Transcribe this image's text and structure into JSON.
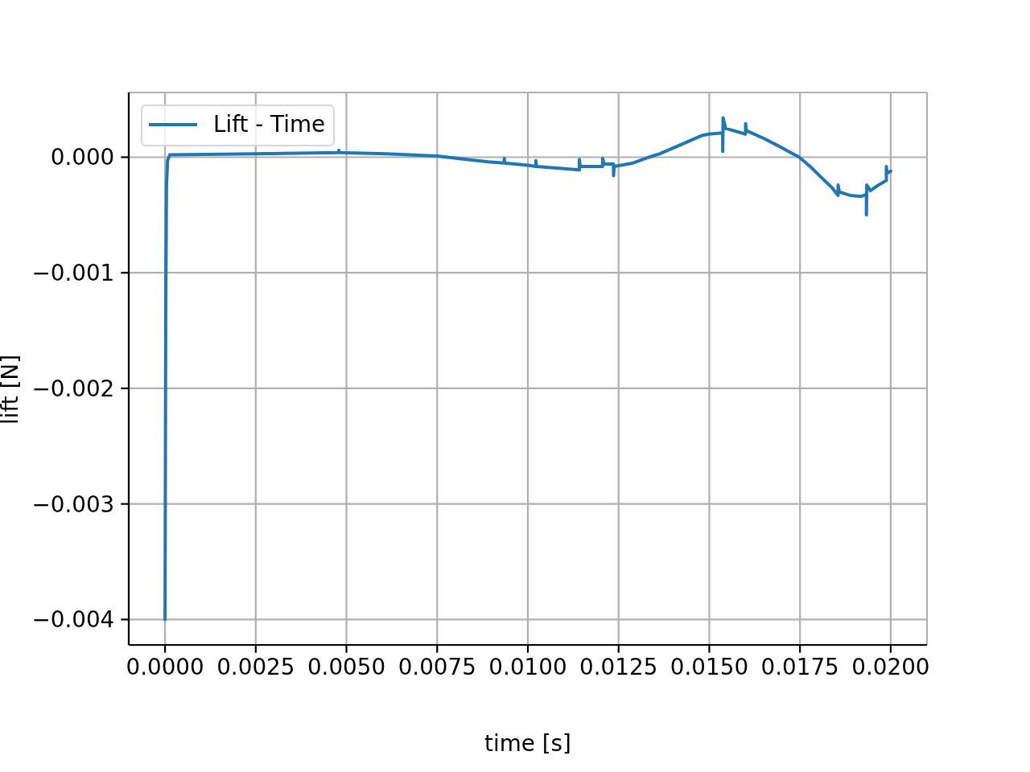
{
  "chart_data": {
    "type": "line",
    "xlabel": "time [s]",
    "ylabel": "lift [N]",
    "x": [
      0,
      2e-05,
      4e-05,
      7e-05,
      0.00013,
      0.0025,
      0.00479,
      0.00479,
      0.0048,
      0.0061,
      0.0075,
      0.00831,
      0.00891,
      0.00935,
      0.00935,
      0.00936,
      0.01,
      0.01022,
      0.01022,
      0.01024,
      0.01142,
      0.01142,
      0.01144,
      0.01206,
      0.01206,
      0.0121,
      0.01236,
      0.01236,
      0.01238,
      0.0129,
      0.01334,
      0.01364,
      0.01408,
      0.01452,
      0.01482,
      0.01499,
      0.01537,
      0.01537,
      0.01538,
      0.01545,
      0.016,
      0.016,
      0.01602,
      0.01652,
      0.01689,
      0.01718,
      0.01748,
      0.01778,
      0.01807,
      0.01837,
      0.01855,
      0.01855,
      0.01858,
      0.01888,
      0.01918,
      0.01933,
      0.01933,
      0.01934,
      0.01944,
      0.01962,
      0.01988,
      0.01988,
      0.0199,
      0.02
    ],
    "series": [
      {
        "name": "Lift - Time",
        "color": "#1f77b4",
        "values": [
          -0.004,
          -0.0013,
          -0.00025,
          -3e-05,
          2e-05,
          3e-05,
          4e-05,
          6e-05,
          4e-05,
          3e-05,
          1e-05,
          -2e-05,
          -4e-05,
          -5e-05,
          -1e-05,
          -5e-05,
          -7e-05,
          -8e-05,
          -3e-05,
          -8e-05,
          -0.00011,
          -2e-05,
          -8e-05,
          -8e-05,
          -1e-05,
          -6e-05,
          -6e-05,
          -0.00016,
          -8e-05,
          -5e-05,
          0,
          3e-05,
          9e-05,
          0.00015,
          0.00019,
          0.0002,
          0.00021,
          5e-05,
          0.00034,
          0.00025,
          0.0002,
          0.00029,
          0.00023,
          0.00016,
          0.0001,
          5e-05,
          0,
          -8e-05,
          -0.00017,
          -0.00026,
          -0.00033,
          -0.00024,
          -0.0003,
          -0.00033,
          -0.00034,
          -0.00032,
          -0.0005,
          -0.00024,
          -0.00029,
          -0.00025,
          -0.0002,
          -8e-05,
          -0.00014,
          -0.00012
        ]
      }
    ],
    "xlim": [
      -0.001,
      0.021
    ],
    "ylim": [
      -0.00422,
      0.00056
    ],
    "xticks": [
      {
        "value": 0,
        "label": "0.0000"
      },
      {
        "value": 0.0025,
        "label": "0.0025"
      },
      {
        "value": 0.005,
        "label": "0.0050"
      },
      {
        "value": 0.0075,
        "label": "0.0075"
      },
      {
        "value": 0.01,
        "label": "0.0100"
      },
      {
        "value": 0.0125,
        "label": "0.0125"
      },
      {
        "value": 0.015,
        "label": "0.0150"
      },
      {
        "value": 0.0175,
        "label": "0.0175"
      },
      {
        "value": 0.02,
        "label": "0.0200"
      }
    ],
    "yticks": [
      {
        "value": -0.004,
        "label": "−0.004"
      },
      {
        "value": -0.003,
        "label": "−0.003"
      },
      {
        "value": -0.002,
        "label": "−0.002"
      },
      {
        "value": -0.001,
        "label": "−0.001"
      },
      {
        "value": 0,
        "label": "0.000"
      }
    ],
    "grid": true,
    "legend": "top left",
    "marker": "none",
    "line_style": "solid"
  }
}
